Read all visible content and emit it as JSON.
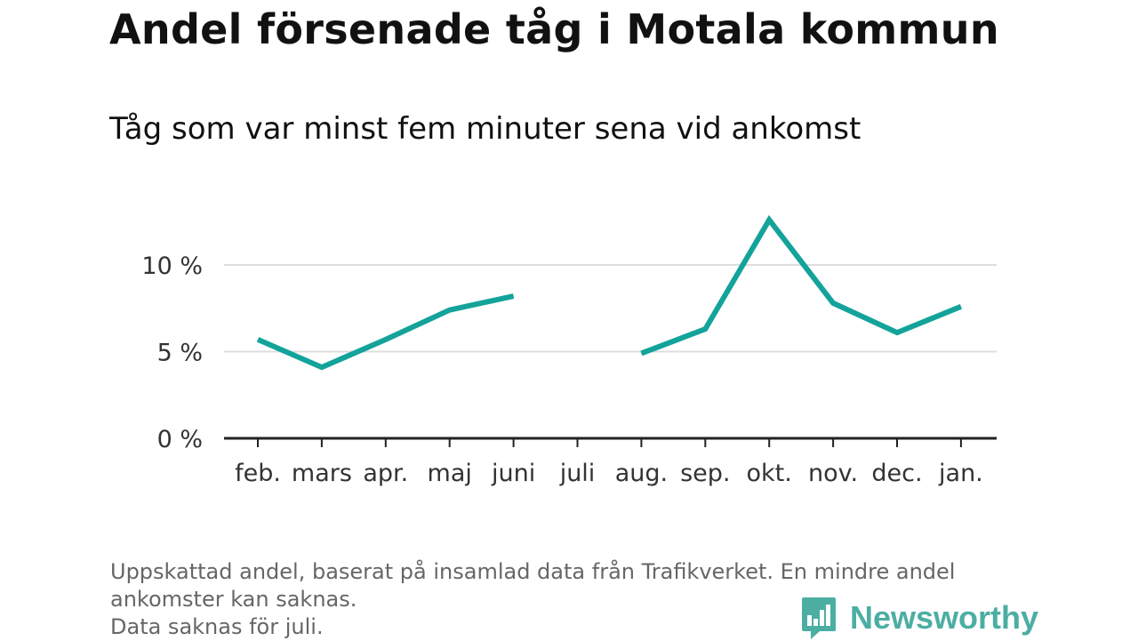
{
  "title": "Andel försenade tåg i Motala kommun",
  "subtitle": "Tåg som var minst fem minuter sena vid ankomst",
  "footnote": {
    "line1": "Uppskattad andel, baserat på insamlad data från Trafikverket. En mindre andel",
    "line2": "ankomster kan saknas.",
    "line3": "Data saknas för juli."
  },
  "logo": {
    "text": "Newsworthy",
    "icon": "newsworthy-chart-bubble-icon",
    "color": "#4caea3"
  },
  "colors": {
    "line": "#13a39a",
    "grid": "#dddddd",
    "axis": "#222222",
    "tick_text": "#333333"
  },
  "chart_data": {
    "type": "line",
    "title": "Andel försenade tåg i Motala kommun",
    "subtitle": "Tåg som var minst fem minuter sena vid ankomst",
    "categories": [
      "feb.",
      "mars",
      "apr.",
      "maj",
      "juni",
      "juli",
      "aug.",
      "sep.",
      "okt.",
      "nov.",
      "dec.",
      "jan."
    ],
    "series": [
      {
        "values": [
          5.7,
          4.1,
          5.7,
          7.4,
          8.2,
          null,
          4.9,
          6.3,
          12.6,
          7.8,
          6.1,
          7.6
        ]
      }
    ],
    "y_ticks": [
      0,
      5,
      10
    ],
    "y_tick_labels": [
      "0 %",
      "5 %",
      "10 %"
    ],
    "ylim": [
      0,
      13
    ],
    "xlabel": "",
    "ylabel": "",
    "grid": true,
    "legend": "none"
  }
}
